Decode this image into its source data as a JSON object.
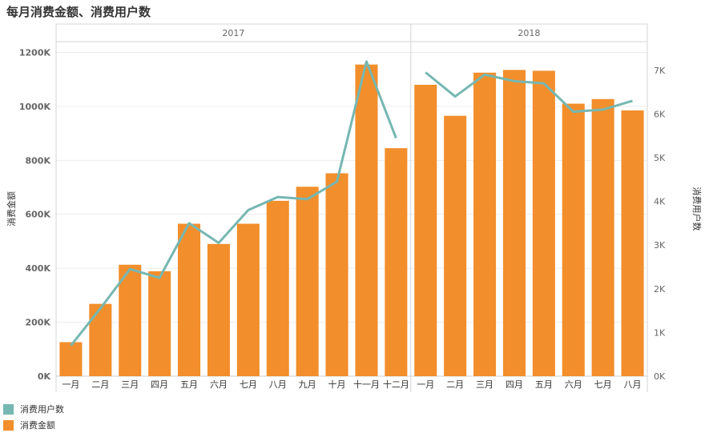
{
  "chart_data": {
    "type": "bar",
    "title": "每月消费金额、消费用户数",
    "years": [
      "2017",
      "2018"
    ],
    "categories": [
      "一月",
      "二月",
      "三月",
      "四月",
      "五月",
      "六月",
      "七月",
      "八月",
      "九月",
      "十月",
      "十一月",
      "十二月",
      "一月",
      "二月",
      "三月",
      "四月",
      "五月",
      "六月",
      "七月",
      "八月"
    ],
    "series": [
      {
        "name": "消费金额",
        "type": "bar",
        "axis": "left",
        "color": "#F28E2B",
        "values": [
          126000,
          268000,
          413000,
          389000,
          565000,
          490000,
          565000,
          650000,
          702000,
          752000,
          1155000,
          845000,
          1080000,
          965000,
          1125000,
          1135000,
          1132000,
          1010000,
          1027000,
          985000
        ]
      },
      {
        "name": "消费用户数",
        "type": "line",
        "axis": "right",
        "color": "#76B7B2",
        "values": [
          700,
          1550,
          2450,
          2250,
          3500,
          3050,
          3800,
          4100,
          4050,
          4450,
          7200,
          5450,
          6950,
          6400,
          6900,
          6750,
          6700,
          6050,
          6100,
          6300
        ]
      }
    ],
    "y_left": {
      "label": "消费金额",
      "ylim": [
        0,
        1240000
      ],
      "ticks": [
        0,
        200000,
        400000,
        600000,
        800000,
        1000000,
        1200000
      ],
      "tick_labels": [
        "0K",
        "200K",
        "400K",
        "600K",
        "800K",
        "1000K",
        "1200K"
      ]
    },
    "y_right": {
      "label": "消费用户数",
      "ylim": [
        0,
        7655
      ],
      "ticks": [
        0,
        1000,
        2000,
        3000,
        4000,
        5000,
        6000,
        7000
      ],
      "tick_labels": [
        "0K",
        "1K",
        "2K",
        "3K",
        "4K",
        "5K",
        "6K",
        "7K"
      ]
    },
    "legend": [
      {
        "label": "消费用户数",
        "color": "#76B7B2"
      },
      {
        "label": "消费金额",
        "color": "#F28E2B"
      }
    ],
    "legend_position": "bottom-left",
    "grid": true
  }
}
